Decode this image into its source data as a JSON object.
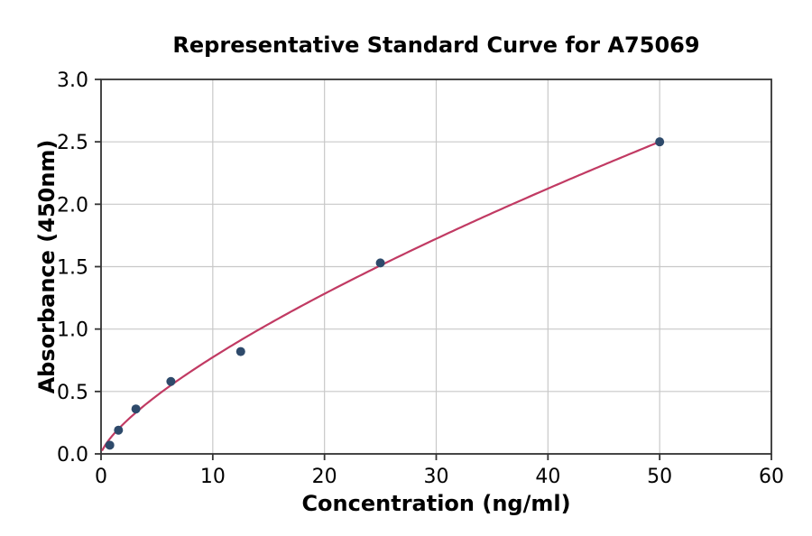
{
  "chart_data": {
    "type": "scatter",
    "title": "Representative Standard Curve for A75069",
    "xlabel": "Concentration (ng/ml)",
    "ylabel": "Absorbance (450nm)",
    "xlim": [
      0,
      60
    ],
    "ylim": [
      0,
      3
    ],
    "x_ticks": [
      0,
      10,
      20,
      30,
      40,
      50,
      60
    ],
    "x_tick_labels": [
      "0",
      "10",
      "20",
      "30",
      "40",
      "50",
      "60"
    ],
    "y_ticks": [
      0,
      0.5,
      1,
      1.5,
      2,
      2.5,
      3
    ],
    "y_tick_labels": [
      "0.0",
      "0.5",
      "1.0",
      "1.5",
      "2.0",
      "2.5",
      "3.0"
    ],
    "grid": true,
    "legend": "none",
    "series": [
      {
        "name": "standard-points",
        "kind": "scatter",
        "x": [
          0.78,
          1.56,
          3.12,
          6.25,
          12.5,
          25,
          50
        ],
        "y": [
          0.07,
          0.19,
          0.36,
          0.58,
          0.82,
          1.53,
          2.5
        ],
        "color": "#2e4a6b",
        "marker_radius": 5
      },
      {
        "name": "fit-curve",
        "kind": "power-fit",
        "fit": {
          "model": "power",
          "a": 0.1446,
          "b": 0.7286,
          "x_range": [
            0.12,
            50
          ]
        },
        "color": "#c13a63",
        "line_width": 2.2
      }
    ],
    "colors": {
      "background": "#ffffff",
      "grid": "#c8c8c8",
      "spine": "#333333",
      "tick": "#333333",
      "text": "#000000"
    }
  }
}
